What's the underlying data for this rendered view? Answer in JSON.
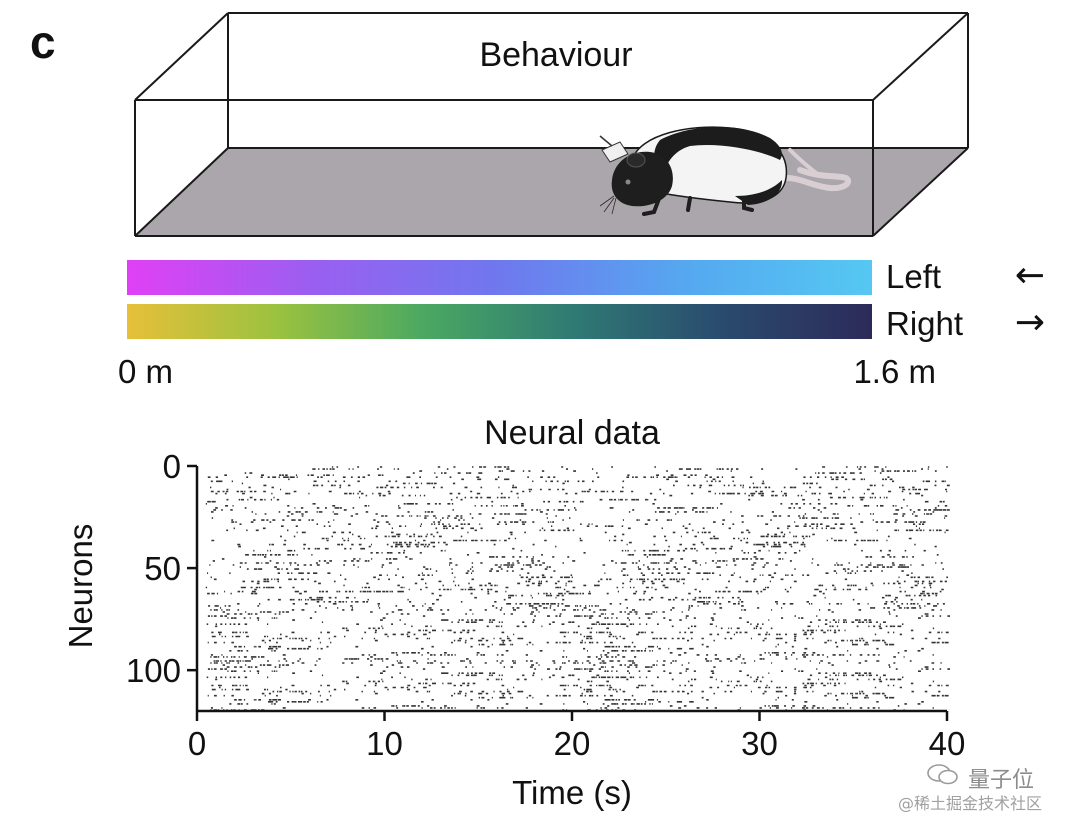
{
  "panel_label": "c",
  "behaviour": {
    "title": "Behaviour"
  },
  "colorbars": {
    "left_label": "Left",
    "right_label": "Right",
    "left_arrow": "←",
    "right_arrow": "→",
    "start_label": "0 m",
    "end_label": "1.6 m",
    "left_gradient": [
      "#e040f5",
      "#9a5ff0",
      "#6f78ee",
      "#55a8f0",
      "#55c8f2"
    ],
    "right_gradient": [
      "#e6c03a",
      "#9bc23f",
      "#4aa862",
      "#2f7a74",
      "#2a4a6e",
      "#2d2a5a"
    ]
  },
  "neural": {
    "title": "Neural data",
    "ylabel": "Neurons",
    "xlabel": "Time (s)",
    "y_ticks": [
      "0",
      "50",
      "100"
    ],
    "x_ticks": [
      "0",
      "10",
      "20",
      "30",
      "40"
    ]
  },
  "chart_data": {
    "type": "scatter",
    "title": "Neural data",
    "xlabel": "Time (s)",
    "ylabel": "Neurons",
    "xlim": [
      0,
      40
    ],
    "ylim": [
      0,
      120
    ],
    "y_inverted": true,
    "x_ticks": [
      0,
      10,
      20,
      30,
      40
    ],
    "y_ticks": [
      0,
      50,
      100
    ],
    "neuron_count": 120
  },
  "watermark": {
    "brand": "量子位",
    "credit": "@稀土掘金技术社区"
  }
}
